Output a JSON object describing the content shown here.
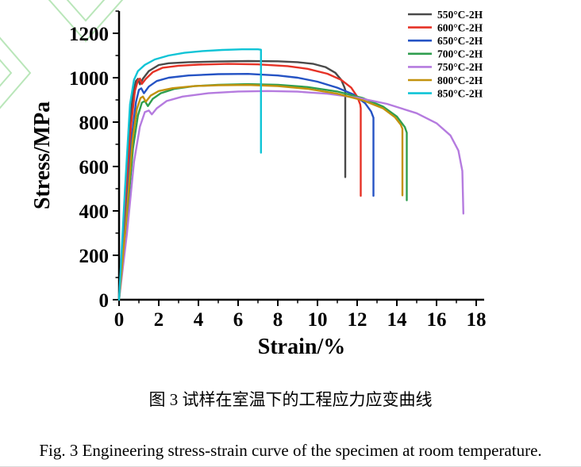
{
  "figure": {
    "caption_zh": "图 3 试样在室温下的工程应力应变曲线",
    "caption_en": "Fig. 3 Engineering stress-strain curve of the specimen at room temperature."
  },
  "decor": {
    "color": "#b9e6b9",
    "polylines": [
      "55,-8 108,52 161,-8",
      "78,-8 108,26 138,-8",
      "-12,34 38,92 -12,150",
      "-12,62 14,92 -12,122"
    ]
  },
  "chart_data": {
    "type": "line",
    "title": "",
    "xlabel": "Strain/%",
    "ylabel": "Stress/MPa",
    "xlim": [
      0,
      18.4
    ],
    "ylim": [
      0,
      1300
    ],
    "xticks": [
      0,
      2,
      4,
      6,
      8,
      10,
      12,
      14,
      16,
      18
    ],
    "xminorticks": [
      1,
      3,
      5,
      7,
      9,
      11,
      13,
      15,
      17
    ],
    "yticks": [
      0,
      200,
      400,
      600,
      800,
      1000,
      1200
    ],
    "yminorticks": [
      100,
      300,
      500,
      700,
      900,
      1100,
      1300
    ],
    "grid": false,
    "legend_position": "top-right",
    "series": [
      {
        "name": "550°C-2H",
        "color": "#4a4a4a",
        "points": [
          [
            0,
            0
          ],
          [
            0.3,
            420
          ],
          [
            0.55,
            800
          ],
          [
            0.7,
            930
          ],
          [
            0.85,
            985
          ],
          [
            0.95,
            995
          ],
          [
            1.05,
            970
          ],
          [
            1.2,
            995
          ],
          [
            1.5,
            1030
          ],
          [
            2,
            1057
          ],
          [
            2.5,
            1065
          ],
          [
            3.5,
            1070
          ],
          [
            5,
            1073
          ],
          [
            6.5,
            1075
          ],
          [
            8,
            1074
          ],
          [
            9,
            1070
          ],
          [
            9.8,
            1062
          ],
          [
            10.4,
            1048
          ],
          [
            10.9,
            1022
          ],
          [
            11.2,
            990
          ],
          [
            11.35,
            958
          ],
          [
            11.4,
            945
          ],
          [
            11.4,
            552
          ]
        ]
      },
      {
        "name": "600°C-2H",
        "color": "#e63226",
        "points": [
          [
            0,
            0
          ],
          [
            0.32,
            400
          ],
          [
            0.6,
            780
          ],
          [
            0.8,
            940
          ],
          [
            0.95,
            988
          ],
          [
            1.05,
            996
          ],
          [
            1.15,
            972
          ],
          [
            1.35,
            995
          ],
          [
            1.7,
            1025
          ],
          [
            2.2,
            1045
          ],
          [
            3,
            1054
          ],
          [
            4,
            1059
          ],
          [
            5.5,
            1062
          ],
          [
            7,
            1060
          ],
          [
            8.5,
            1052
          ],
          [
            9.5,
            1040
          ],
          [
            10.5,
            1018
          ],
          [
            11.2,
            990
          ],
          [
            11.7,
            955
          ],
          [
            12.0,
            915
          ],
          [
            12.15,
            880
          ],
          [
            12.18,
            862
          ],
          [
            12.18,
            468
          ]
        ]
      },
      {
        "name": "650°C-2H",
        "color": "#2553c4",
        "points": [
          [
            0,
            0
          ],
          [
            0.35,
            380
          ],
          [
            0.65,
            740
          ],
          [
            0.85,
            890
          ],
          [
            1.0,
            945
          ],
          [
            1.12,
            952
          ],
          [
            1.25,
            930
          ],
          [
            1.5,
            960
          ],
          [
            1.9,
            985
          ],
          [
            2.5,
            1000
          ],
          [
            3.5,
            1010
          ],
          [
            5,
            1016
          ],
          [
            6.5,
            1017
          ],
          [
            8,
            1010
          ],
          [
            9,
            1000
          ],
          [
            10,
            982
          ],
          [
            11,
            955
          ],
          [
            11.8,
            925
          ],
          [
            12.4,
            885
          ],
          [
            12.7,
            848
          ],
          [
            12.82,
            820
          ],
          [
            12.82,
            468
          ]
        ]
      },
      {
        "name": "700°C-2H",
        "color": "#2f9e4e",
        "points": [
          [
            0,
            0
          ],
          [
            0.38,
            340
          ],
          [
            0.7,
            680
          ],
          [
            0.95,
            830
          ],
          [
            1.15,
            888
          ],
          [
            1.3,
            895
          ],
          [
            1.45,
            872
          ],
          [
            1.7,
            905
          ],
          [
            2.1,
            930
          ],
          [
            2.8,
            950
          ],
          [
            3.8,
            962
          ],
          [
            5,
            968
          ],
          [
            6.5,
            971
          ],
          [
            8,
            968
          ],
          [
            9.5,
            958
          ],
          [
            11,
            938
          ],
          [
            12.3,
            908
          ],
          [
            13.3,
            870
          ],
          [
            14.0,
            825
          ],
          [
            14.4,
            778
          ],
          [
            14.5,
            752
          ],
          [
            14.5,
            448
          ]
        ]
      },
      {
        "name": "750°C-2H",
        "color": "#b57bdf",
        "points": [
          [
            0,
            0
          ],
          [
            0.4,
            300
          ],
          [
            0.75,
            620
          ],
          [
            1.05,
            780
          ],
          [
            1.3,
            845
          ],
          [
            1.5,
            852
          ],
          [
            1.65,
            835
          ],
          [
            1.9,
            862
          ],
          [
            2.4,
            895
          ],
          [
            3.2,
            915
          ],
          [
            4.5,
            930
          ],
          [
            6,
            938
          ],
          [
            7.5,
            940
          ],
          [
            9,
            937
          ],
          [
            10.5,
            928
          ],
          [
            12,
            910
          ],
          [
            13.5,
            882
          ],
          [
            15,
            840
          ],
          [
            16,
            795
          ],
          [
            16.7,
            740
          ],
          [
            17.1,
            672
          ],
          [
            17.3,
            580
          ],
          [
            17.35,
            388
          ]
        ]
      },
      {
        "name": "800°C-2H",
        "color": "#c3920e",
        "points": [
          [
            0,
            0
          ],
          [
            0.36,
            360
          ],
          [
            0.68,
            720
          ],
          [
            0.9,
            860
          ],
          [
            1.08,
            908
          ],
          [
            1.2,
            915
          ],
          [
            1.35,
            892
          ],
          [
            1.6,
            920
          ],
          [
            2,
            940
          ],
          [
            2.7,
            953
          ],
          [
            3.8,
            962
          ],
          [
            5,
            966
          ],
          [
            6.5,
            967
          ],
          [
            8,
            962
          ],
          [
            9.5,
            950
          ],
          [
            11,
            928
          ],
          [
            12.3,
            898
          ],
          [
            13.3,
            862
          ],
          [
            13.9,
            822
          ],
          [
            14.2,
            788
          ],
          [
            14.28,
            770
          ],
          [
            14.28,
            470
          ]
        ]
      },
      {
        "name": "850°C-2H",
        "color": "#10c4d6",
        "points": [
          [
            0,
            0
          ],
          [
            0.3,
            500
          ],
          [
            0.55,
            880
          ],
          [
            0.75,
            990
          ],
          [
            0.95,
            1030
          ],
          [
            1.3,
            1058
          ],
          [
            1.8,
            1082
          ],
          [
            2.5,
            1100
          ],
          [
            3.3,
            1112
          ],
          [
            4.2,
            1120
          ],
          [
            5.2,
            1125
          ],
          [
            6.2,
            1128
          ],
          [
            7.0,
            1128
          ],
          [
            7.15,
            1126
          ],
          [
            7.15,
            662
          ]
        ]
      }
    ]
  }
}
